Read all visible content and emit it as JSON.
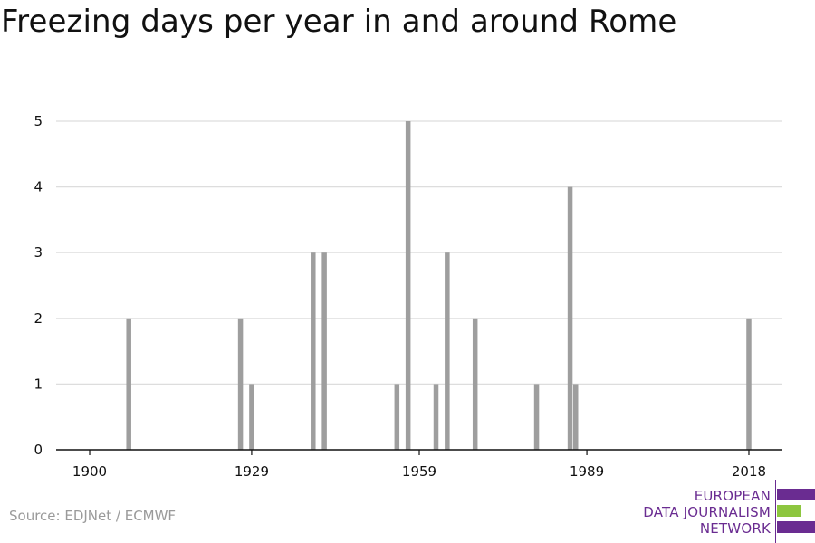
{
  "title": "Freezing days per year in and around Rome",
  "source": "Source: EDJNet / ECMWF",
  "logo": {
    "lines": [
      "EUROPEAN",
      "DATA JOURNALISM",
      "NETWORK"
    ],
    "colors": {
      "text": "#6a2c91",
      "bar_purple": "#6a2c91",
      "bar_green": "#8dc63f"
    }
  },
  "colors": {
    "bar": "#9e9e9e",
    "grid": "#dddddd",
    "axis": "#111111"
  },
  "chart_data": {
    "type": "bar",
    "title": "Freezing days per year in and around Rome",
    "xlabel": "",
    "ylabel": "",
    "xlim": [
      1894,
      2024
    ],
    "ylim": [
      0,
      5
    ],
    "grid": true,
    "x_ticks": [
      1900,
      1929,
      1959,
      1989,
      2018
    ],
    "y_ticks": [
      0,
      1,
      2,
      3,
      4,
      5
    ],
    "x": [
      1907,
      1927,
      1929,
      1940,
      1942,
      1955,
      1957,
      1962,
      1964,
      1969,
      1980,
      1986,
      1987,
      2018
    ],
    "values": [
      2,
      2,
      1,
      3,
      3,
      1,
      5,
      1,
      3,
      2,
      1,
      4,
      1,
      2
    ]
  }
}
